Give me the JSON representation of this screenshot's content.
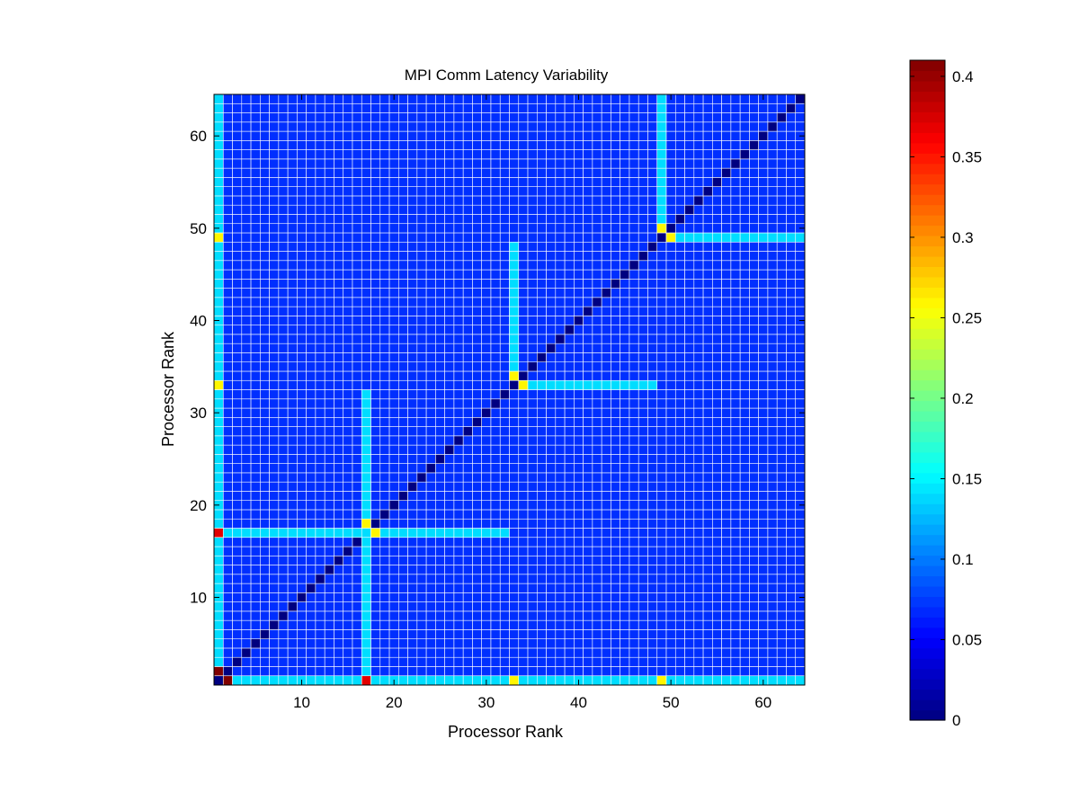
{
  "chart_data": {
    "type": "heatmap",
    "title": "MPI Comm Latency Variability",
    "xlabel": "Processor Rank",
    "ylabel": "Processor Rank",
    "xlim": [
      0.5,
      64.5
    ],
    "ylim": [
      0.5,
      64.5
    ],
    "x_ticks": [
      10,
      20,
      30,
      40,
      50,
      60
    ],
    "y_ticks": [
      10,
      20,
      30,
      40,
      50,
      60
    ],
    "colormap": "jet",
    "colorbar": {
      "min": 0,
      "max": 0.41,
      "ticks": [
        0,
        0.05,
        0.1,
        0.15,
        0.2,
        0.25,
        0.3,
        0.35,
        0.4
      ],
      "tick_labels": [
        "0",
        "0.05",
        "0.1",
        "0.15",
        "0.2",
        "0.25",
        "0.3",
        "0.35",
        "0.4"
      ]
    },
    "matrix": {
      "size": 64,
      "background_value": 0.07,
      "diagonal_value": 0.0,
      "cells": [
        {
          "x": 2,
          "y": 1,
          "value": 0.41
        },
        {
          "x": 1,
          "y": 2,
          "value": 0.41
        },
        {
          "x": 17,
          "y": 1,
          "value": 0.37
        },
        {
          "x": 1,
          "y": 17,
          "value": 0.37
        },
        {
          "x": 33,
          "y": 1,
          "value": 0.26
        },
        {
          "x": 1,
          "y": 33,
          "value": 0.26
        },
        {
          "x": 49,
          "y": 1,
          "value": 0.26
        },
        {
          "x": 1,
          "y": 49,
          "value": 0.26
        },
        {
          "x": 18,
          "y": 17,
          "value": 0.26
        },
        {
          "x": 17,
          "y": 18,
          "value": 0.26
        },
        {
          "x": 34,
          "y": 33,
          "value": 0.26
        },
        {
          "x": 33,
          "y": 34,
          "value": 0.26
        },
        {
          "x": 50,
          "y": 49,
          "value": 0.26
        },
        {
          "x": 49,
          "y": 50,
          "value": 0.26
        }
      ],
      "bands": [
        {
          "orientation": "row",
          "index": 1,
          "from": 3,
          "to": 64,
          "value": 0.14
        },
        {
          "orientation": "col",
          "index": 1,
          "from": 3,
          "to": 64,
          "value": 0.14
        },
        {
          "orientation": "row",
          "index": 17,
          "from": 2,
          "to": 32,
          "value": 0.14
        },
        {
          "orientation": "col",
          "index": 17,
          "from": 2,
          "to": 32,
          "value": 0.14
        },
        {
          "orientation": "row",
          "index": 33,
          "from": 34,
          "to": 48,
          "value": 0.14
        },
        {
          "orientation": "col",
          "index": 33,
          "from": 34,
          "to": 48,
          "value": 0.14
        },
        {
          "orientation": "row",
          "index": 49,
          "from": 50,
          "to": 64,
          "value": 0.14
        },
        {
          "orientation": "col",
          "index": 49,
          "from": 50,
          "to": 64,
          "value": 0.14
        }
      ]
    }
  }
}
